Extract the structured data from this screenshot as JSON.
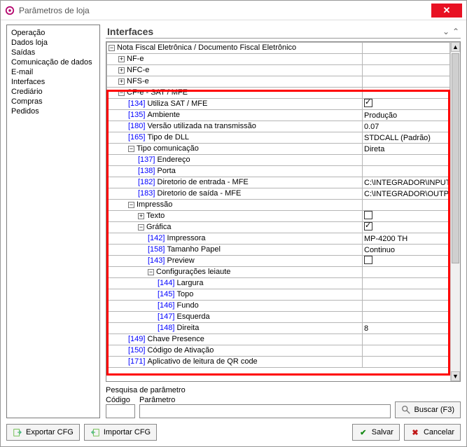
{
  "window": {
    "title": "Parâmetros de loja"
  },
  "sidebar": {
    "items": [
      {
        "label": "Operação"
      },
      {
        "label": "Dados loja"
      },
      {
        "label": "Saídas"
      },
      {
        "label": "Comunicação de dados"
      },
      {
        "label": "E-mail"
      },
      {
        "label": "Interfaces"
      },
      {
        "label": "Crediário"
      },
      {
        "label": "Compras"
      },
      {
        "label": "Pedidos"
      }
    ]
  },
  "panel": {
    "title": "Interfaces"
  },
  "grid": {
    "tree_col_width": 365,
    "value_col_width": 120,
    "highlight": {
      "top_row": 4,
      "bottom_row": 27
    },
    "colors": {
      "code": "#0000ff",
      "border": "#b5b5b5",
      "highlight": "#ff0000"
    },
    "rows": [
      {
        "depth": 0,
        "toggle": "-",
        "label": "Nota Fiscal Eletrônica / Documento Fiscal Eletrônico",
        "value": ""
      },
      {
        "depth": 1,
        "toggle": "+",
        "label": "NF-e",
        "value": ""
      },
      {
        "depth": 1,
        "toggle": "+",
        "label": "NFC-e",
        "value": ""
      },
      {
        "depth": 1,
        "toggle": "+",
        "label": "NFS-e",
        "value": ""
      },
      {
        "depth": 1,
        "toggle": "-",
        "label": "CF-e - SAT / MFE",
        "value": ""
      },
      {
        "depth": 2,
        "code": "[134]",
        "label": "Utiliza SAT / MFE",
        "value_type": "check",
        "checked": true
      },
      {
        "depth": 2,
        "code": "[135]",
        "label": "Ambiente",
        "value": "Produção"
      },
      {
        "depth": 2,
        "code": "[180]",
        "label": "Versão utilizada na transmissão",
        "value": "0.07"
      },
      {
        "depth": 2,
        "code": "[165]",
        "label": "Tipo de DLL",
        "value": "STDCALL (Padrão)"
      },
      {
        "depth": 2,
        "toggle": "-",
        "label": "Tipo comunicação",
        "value": "Direta"
      },
      {
        "depth": 3,
        "code": "[137]",
        "label": "Endereço",
        "value": ""
      },
      {
        "depth": 3,
        "code": "[138]",
        "label": "Porta",
        "value": ""
      },
      {
        "depth": 3,
        "code": "[182]",
        "label": "Diretorio de entrada - MFE",
        "value": "C:\\INTEGRADOR\\INPUT"
      },
      {
        "depth": 3,
        "code": "[183]",
        "label": "Diretorio de saída - MFE",
        "value": "C:\\INTEGRADOR\\OUTPUT"
      },
      {
        "depth": 2,
        "toggle": "-",
        "label": "Impressão",
        "value": ""
      },
      {
        "depth": 3,
        "toggle": "+",
        "label": "Texto",
        "value_type": "check",
        "checked": false
      },
      {
        "depth": 3,
        "toggle": "-",
        "label": "Gráfica",
        "value_type": "check",
        "checked": true
      },
      {
        "depth": 4,
        "code": "[142]",
        "label": "Impressora",
        "value": "MP-4200 TH"
      },
      {
        "depth": 4,
        "code": "[158]",
        "label": "Tamanho Papel",
        "value": "Continuo"
      },
      {
        "depth": 4,
        "code": "[143]",
        "label": "Preview",
        "value_type": "check",
        "checked": false
      },
      {
        "depth": 4,
        "toggle": "-",
        "label": "Configurações leiaute",
        "value": ""
      },
      {
        "depth": 5,
        "code": "[144]",
        "label": "Largura",
        "value": ""
      },
      {
        "depth": 5,
        "code": "[145]",
        "label": "Topo",
        "value": ""
      },
      {
        "depth": 5,
        "code": "[146]",
        "label": "Fundo",
        "value": ""
      },
      {
        "depth": 5,
        "code": "[147]",
        "label": "Esquerda",
        "value": ""
      },
      {
        "depth": 5,
        "code": "[148]",
        "label": "Direita",
        "value": "8"
      },
      {
        "depth": 2,
        "code": "[149]",
        "label": "Chave Presence",
        "value": ""
      },
      {
        "depth": 2,
        "code": "[150]",
        "label": "Código de Ativação",
        "value": ""
      },
      {
        "depth": 2,
        "code": "[171]",
        "label": "Aplicativo de leitura de QR code",
        "value": ""
      }
    ]
  },
  "search": {
    "group_label": "Pesquisa de parâmetro",
    "codigo_label": "Código",
    "parametro_label": "Parâmetro",
    "buscar_label": "Buscar (F3)"
  },
  "footer": {
    "export_label": "Exportar CFG",
    "import_label": "Importar CFG",
    "save_label": "Salvar",
    "cancel_label": "Cancelar"
  }
}
